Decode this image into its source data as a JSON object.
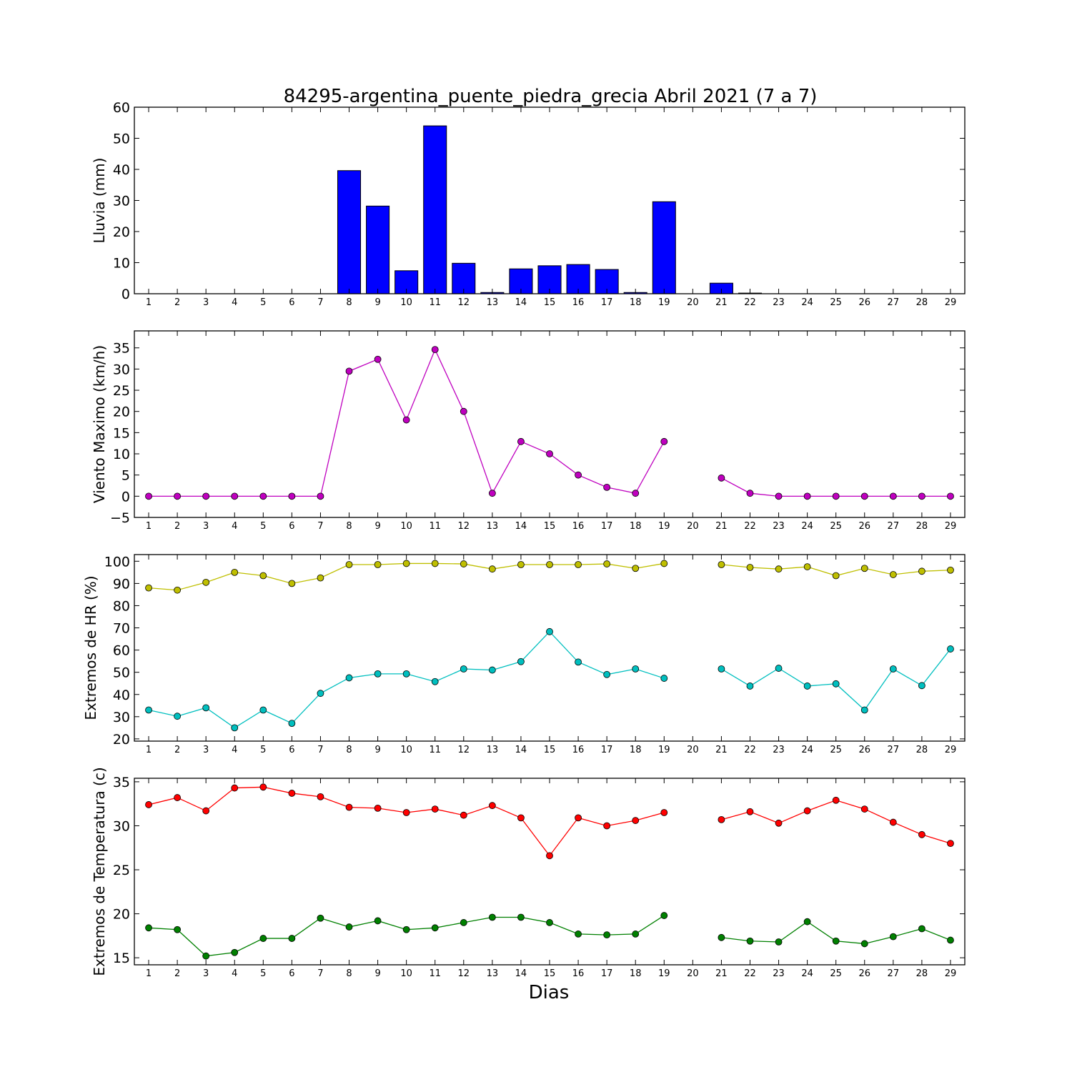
{
  "title": "84295-argentina_puente_piedra_grecia Abril 2021  (7 a 7)",
  "xlabel": "Dias",
  "chart_data": [
    {
      "type": "bar",
      "ylabel": "Lluvia (mm)",
      "ylim": [
        0,
        60
      ],
      "yticks": [
        0,
        10,
        20,
        30,
        40,
        50,
        60
      ],
      "xlim": [
        0.5,
        29.5
      ],
      "categories": [
        1,
        2,
        3,
        4,
        5,
        6,
        7,
        8,
        9,
        10,
        11,
        12,
        13,
        14,
        15,
        16,
        17,
        18,
        19,
        20,
        21,
        22,
        23,
        24,
        25,
        26,
        27,
        28,
        29
      ],
      "series": [
        {
          "color": "#0000ff",
          "values": [
            0,
            0,
            0,
            0,
            0,
            0,
            0,
            39.6,
            28.2,
            7.4,
            54.0,
            9.8,
            0.4,
            8.0,
            9.0,
            9.4,
            7.8,
            0.4,
            29.6,
            0,
            3.4,
            0.2,
            0,
            0,
            0,
            0,
            0,
            0,
            0
          ]
        }
      ]
    },
    {
      "type": "line",
      "ylabel": "Viento Maximo (km/h)",
      "ylim": [
        -5,
        39
      ],
      "yticks": [
        -5,
        0,
        5,
        10,
        15,
        20,
        25,
        30,
        35
      ],
      "xlim": [
        0.5,
        29.5
      ],
      "x": [
        1,
        2,
        3,
        4,
        5,
        6,
        7,
        8,
        9,
        10,
        11,
        12,
        13,
        14,
        15,
        16,
        17,
        18,
        19,
        20,
        21,
        22,
        23,
        24,
        25,
        26,
        27,
        28,
        29
      ],
      "series": [
        {
          "color": "#bf00bf",
          "values": [
            0,
            0,
            0,
            0,
            0,
            0,
            0,
            29.5,
            32.3,
            18.0,
            34.6,
            20.0,
            0.7,
            12.9,
            10.0,
            5.0,
            2.1,
            0.7,
            12.9,
            null,
            4.3,
            0.7,
            0,
            0,
            0,
            0,
            0,
            0,
            0
          ]
        }
      ]
    },
    {
      "type": "line",
      "ylabel": "Extremos de HR (%)",
      "ylim": [
        19,
        103
      ],
      "yticks": [
        20,
        30,
        40,
        50,
        60,
        70,
        80,
        90,
        100
      ],
      "xlim": [
        0.5,
        29.5
      ],
      "x": [
        1,
        2,
        3,
        4,
        5,
        6,
        7,
        8,
        9,
        10,
        11,
        12,
        13,
        14,
        15,
        16,
        17,
        18,
        19,
        20,
        21,
        22,
        23,
        24,
        25,
        26,
        27,
        28,
        29
      ],
      "series": [
        {
          "color": "#bfbf00",
          "values": [
            88,
            87,
            90.5,
            95,
            93.5,
            90,
            92.5,
            98.5,
            98.5,
            99,
            99,
            98.8,
            96.5,
            98.5,
            98.5,
            98.5,
            98.8,
            96.8,
            99,
            null,
            98.5,
            97.2,
            96.5,
            97.5,
            93.5,
            96.8,
            94,
            95.5,
            96
          ]
        },
        {
          "color": "#00bfbf",
          "values": [
            33,
            30.2,
            34,
            25,
            33,
            27,
            40.5,
            47.5,
            49.3,
            49.3,
            45.8,
            51.5,
            51,
            54.8,
            68.3,
            54.6,
            49,
            51.5,
            47.3,
            null,
            51.5,
            43.8,
            51.8,
            43.8,
            44.8,
            33,
            51.5,
            44,
            60.5
          ]
        }
      ]
    },
    {
      "type": "line",
      "ylabel": "Extremos de Temperatura (c)",
      "ylim": [
        14.2,
        35.4
      ],
      "yticks": [
        15,
        20,
        25,
        30,
        35
      ],
      "xlim": [
        0.5,
        29.5
      ],
      "x": [
        1,
        2,
        3,
        4,
        5,
        6,
        7,
        8,
        9,
        10,
        11,
        12,
        13,
        14,
        15,
        16,
        17,
        18,
        19,
        20,
        21,
        22,
        23,
        24,
        25,
        26,
        27,
        28,
        29
      ],
      "series": [
        {
          "color": "#ff0000",
          "values": [
            32.4,
            33.2,
            31.7,
            34.3,
            34.4,
            33.7,
            33.3,
            32.1,
            32.0,
            31.5,
            31.9,
            31.2,
            32.3,
            30.9,
            26.6,
            30.9,
            30.0,
            30.6,
            31.5,
            null,
            30.7,
            31.6,
            30.3,
            31.7,
            32.9,
            31.9,
            30.4,
            29.0,
            28.0
          ]
        },
        {
          "color": "#008000",
          "values": [
            18.4,
            18.2,
            15.2,
            15.6,
            17.2,
            17.2,
            19.5,
            18.5,
            19.2,
            18.2,
            18.4,
            19.0,
            19.6,
            19.6,
            19.0,
            17.7,
            17.6,
            17.7,
            19.8,
            null,
            17.3,
            16.9,
            16.8,
            19.1,
            16.9,
            16.6,
            17.4,
            18.3,
            17.0
          ]
        }
      ]
    }
  ]
}
